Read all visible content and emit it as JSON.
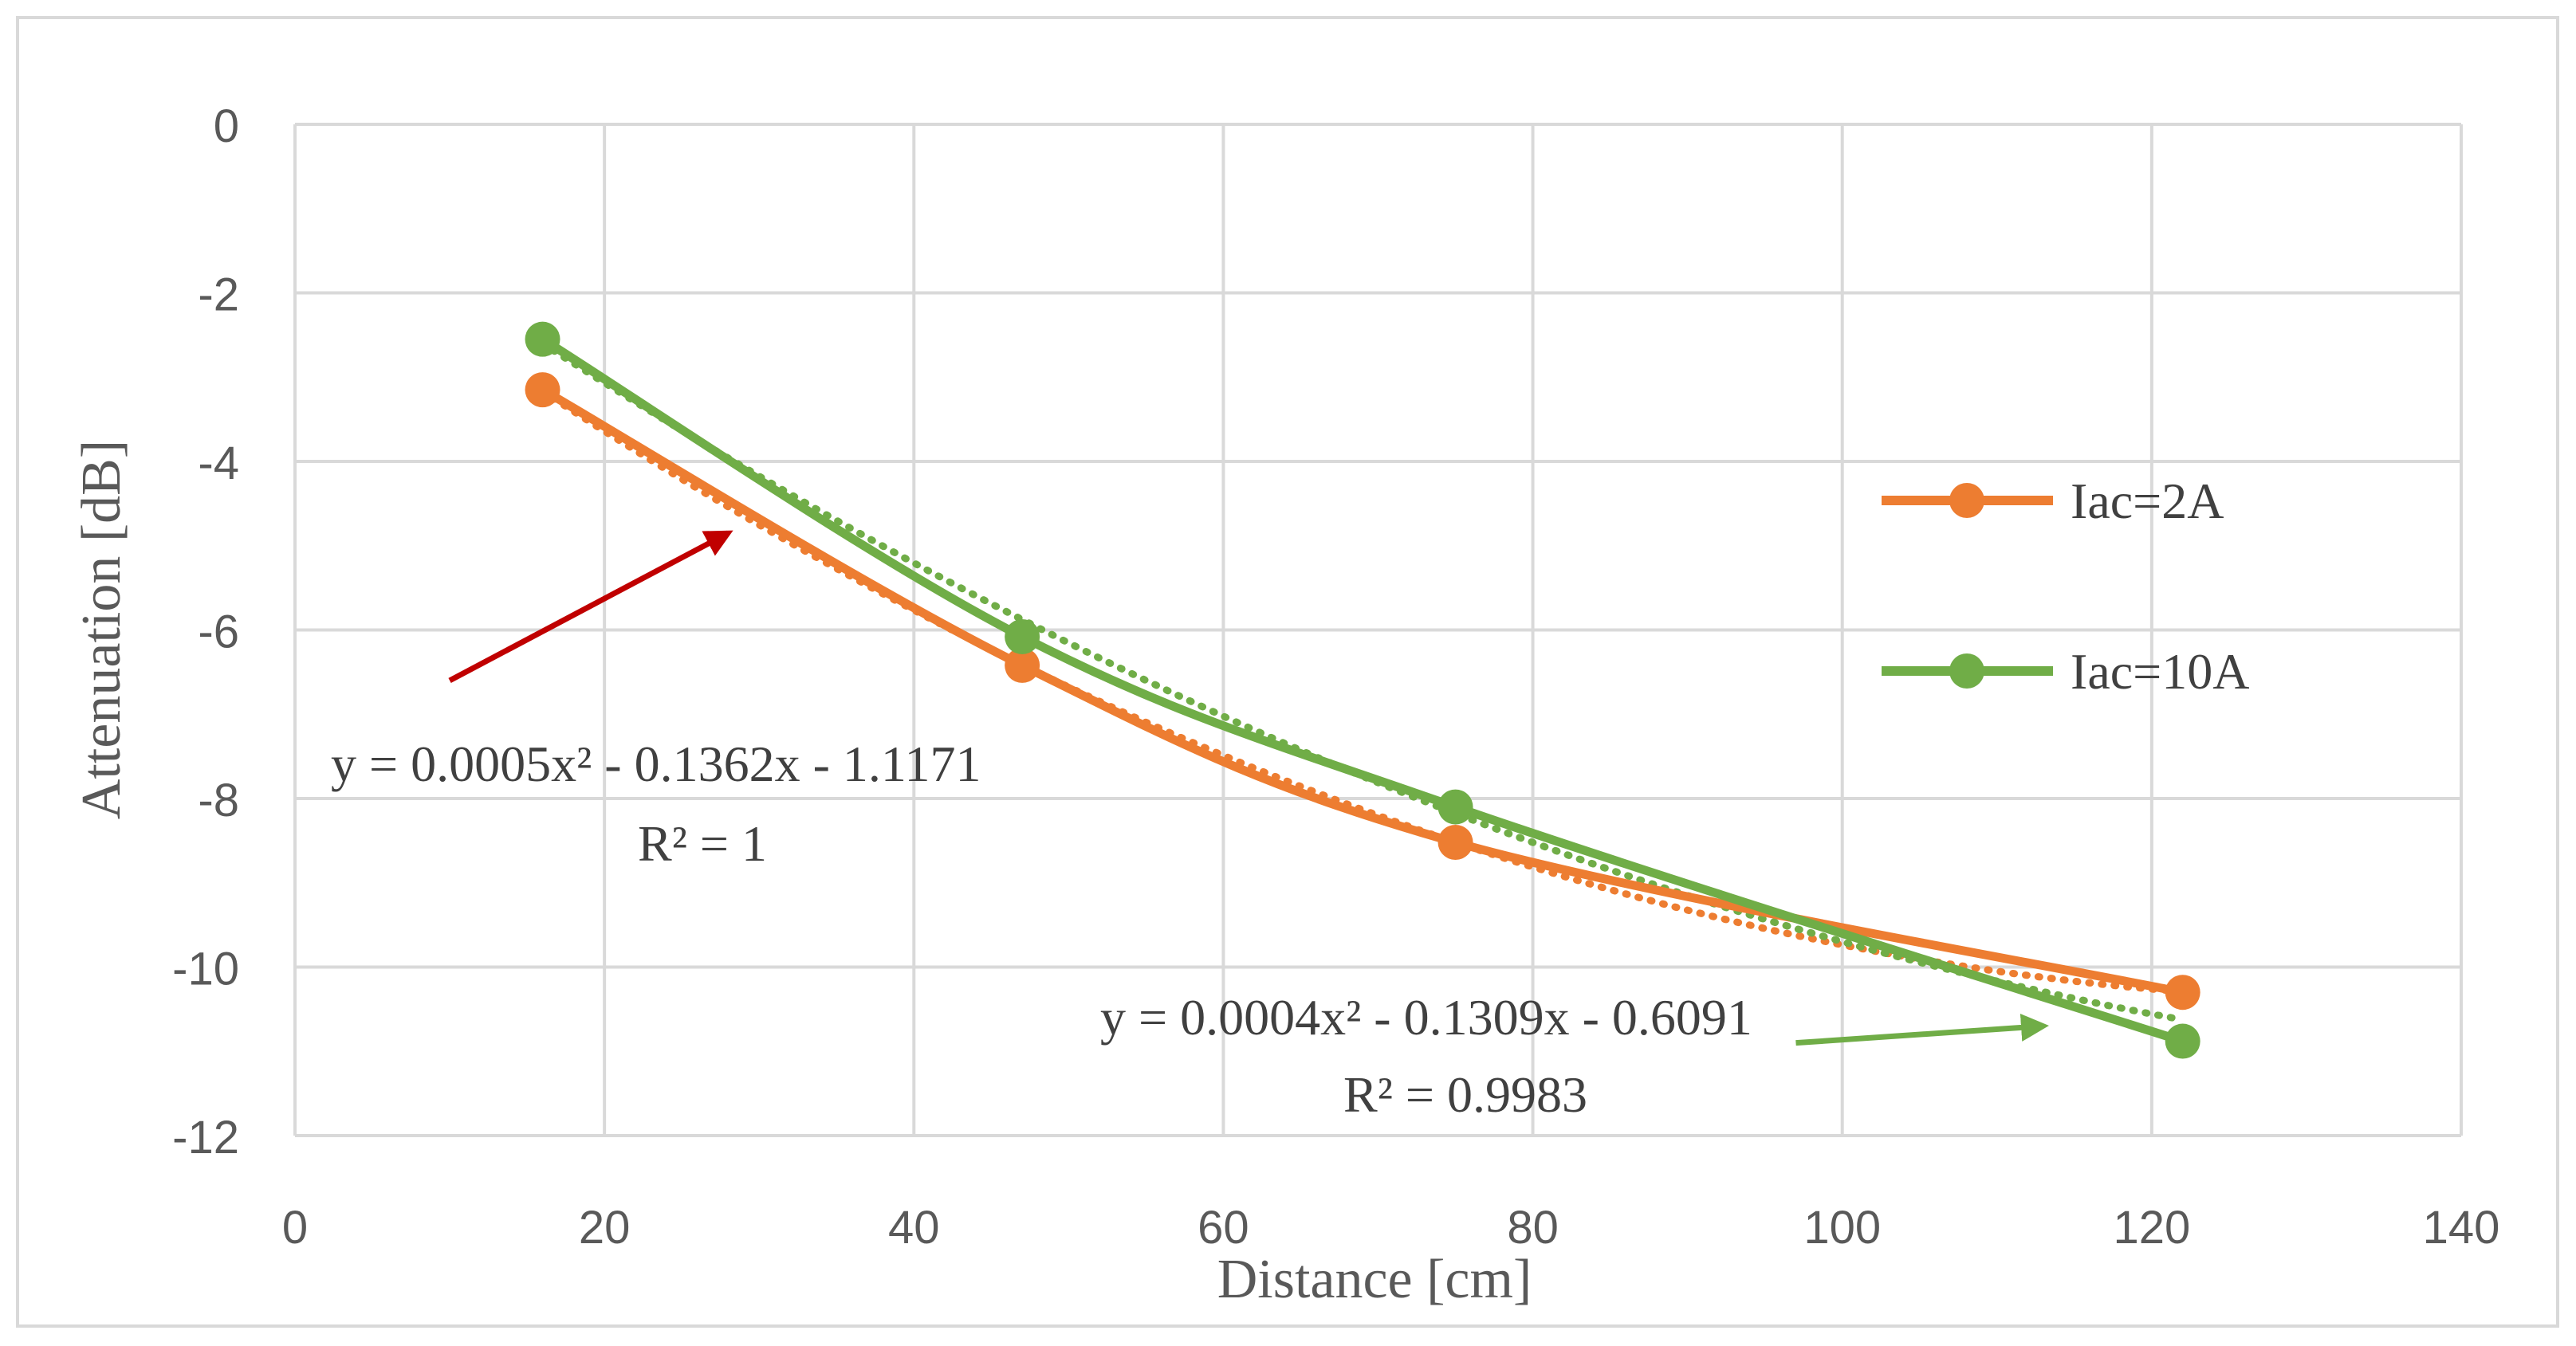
{
  "chart_data": {
    "type": "line",
    "xlabel": "Distance [cm]",
    "ylabel": "Attenuation [dB]",
    "xlim": [
      0,
      140
    ],
    "ylim": [
      -12,
      0
    ],
    "x_ticks": [
      0,
      20,
      40,
      60,
      80,
      100,
      120,
      140
    ],
    "y_ticks": [
      0,
      -2,
      -4,
      -6,
      -8,
      -10,
      -12
    ],
    "grid": true,
    "legend_position": "right",
    "series": [
      {
        "name": "Iac=2A",
        "color": "#ED7D31",
        "x": [
          16,
          47,
          75,
          122
        ],
        "y": [
          -3.15,
          -6.42,
          -8.52,
          -10.3
        ],
        "trendline": {
          "type": "polynomial",
          "order": 2,
          "a": 0.0005,
          "b": -0.1362,
          "c": -1.1171
        }
      },
      {
        "name": "Iac=10A",
        "color": "#70AD47",
        "x": [
          16,
          47,
          75,
          122
        ],
        "y": [
          -2.55,
          -6.08,
          -8.1,
          -10.88
        ],
        "trendline": {
          "type": "polynomial",
          "order": 2,
          "a": 0.0004,
          "b": -0.1309,
          "c": -0.6091
        }
      }
    ],
    "annotations": [
      {
        "name": "equation-2A",
        "equation": "y = 0.0005x² - 0.1362x - 1.1171",
        "r_squared": "R² = 1",
        "arrow_color": "#C00000",
        "arrow_from": [
          10,
          -6.6
        ],
        "arrow_to": [
          28,
          -4.85
        ]
      },
      {
        "name": "equation-10A",
        "equation": "y = 0.0004x² - 0.1309x - 0.6091",
        "r_squared": "R² = 0.9983",
        "arrow_color": "#70AD47",
        "arrow_from": [
          97,
          -10.9
        ],
        "arrow_to": [
          113,
          -10.7
        ]
      }
    ]
  }
}
